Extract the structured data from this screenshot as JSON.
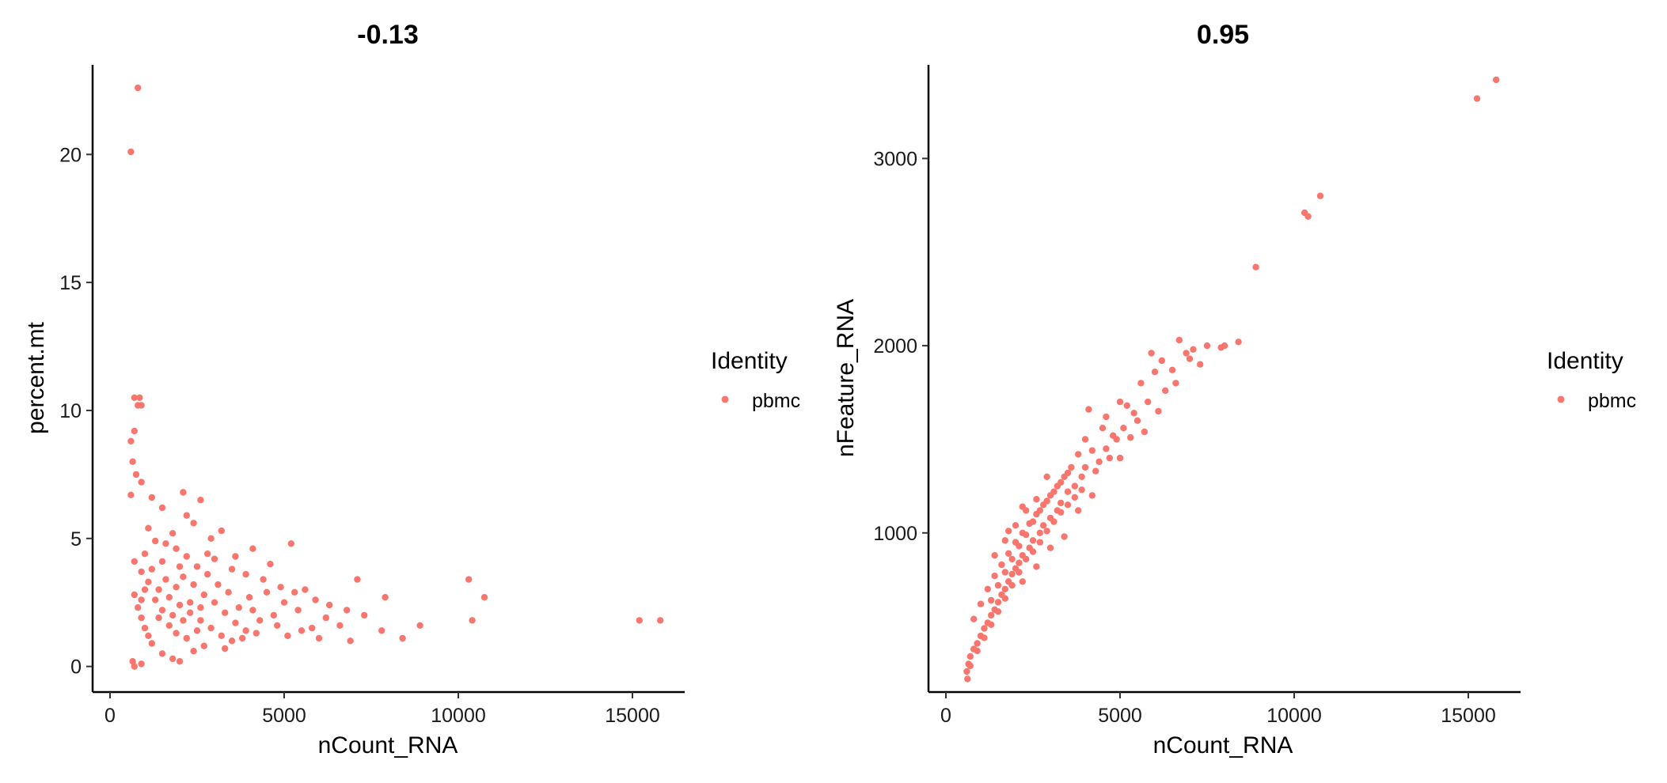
{
  "chart_data": [
    {
      "type": "scatter",
      "title": "-0.13",
      "xlabel": "nCount_RNA",
      "ylabel": "percent.mt",
      "xlim": [
        -500,
        16500
      ],
      "ylim": [
        -1,
        23.5
      ],
      "xticks": [
        0,
        5000,
        10000,
        15000
      ],
      "yticks": [
        0,
        5,
        10,
        15,
        20
      ],
      "xtick_labels": [
        "0",
        "5000",
        "10000",
        "15000"
      ],
      "ytick_labels": [
        "0",
        "5",
        "10",
        "15",
        "20"
      ],
      "grid": false,
      "legend": {
        "title": "Identity",
        "entries": [
          {
            "label": "pbmc",
            "color": "#F8766D"
          }
        ],
        "position": "right"
      },
      "series": [
        {
          "name": "pbmc",
          "color": "#F8766D",
          "points": [
            [
              800,
              22.6
            ],
            [
              600,
              20.1
            ],
            [
              700,
              10.5
            ],
            [
              850,
              10.5
            ],
            [
              800,
              10.2
            ],
            [
              900,
              10.2
            ],
            [
              700,
              9.2
            ],
            [
              600,
              8.8
            ],
            [
              650,
              8.0
            ],
            [
              750,
              7.5
            ],
            [
              900,
              7.2
            ],
            [
              600,
              6.7
            ],
            [
              1200,
              6.6
            ],
            [
              2100,
              6.8
            ],
            [
              2600,
              6.5
            ],
            [
              1500,
              6.2
            ],
            [
              2200,
              5.9
            ],
            [
              3200,
              5.3
            ],
            [
              4100,
              4.6
            ],
            [
              5200,
              4.8
            ],
            [
              3600,
              4.3
            ],
            [
              4600,
              4.0
            ],
            [
              2900,
              5.0
            ],
            [
              1100,
              5.4
            ],
            [
              1800,
              5.2
            ],
            [
              2400,
              5.6
            ],
            [
              3000,
              4.2
            ],
            [
              3900,
              3.6
            ],
            [
              4400,
              3.4
            ],
            [
              4900,
              3.1
            ],
            [
              5300,
              2.9
            ],
            [
              5600,
              3.0
            ],
            [
              5900,
              2.6
            ],
            [
              6300,
              2.4
            ],
            [
              6800,
              2.2
            ],
            [
              7100,
              3.4
            ],
            [
              7300,
              2.0
            ],
            [
              6600,
              1.6
            ],
            [
              6200,
              1.9
            ],
            [
              5800,
              1.5
            ],
            [
              5400,
              2.2
            ],
            [
              5000,
              2.5
            ],
            [
              4700,
              2.0
            ],
            [
              4300,
              1.8
            ],
            [
              4000,
              2.7
            ],
            [
              3700,
              2.3
            ],
            [
              3400,
              2.9
            ],
            [
              3100,
              3.2
            ],
            [
              2800,
              3.6
            ],
            [
              2500,
              3.9
            ],
            [
              2200,
              4.3
            ],
            [
              1900,
              4.6
            ],
            [
              1600,
              4.8
            ],
            [
              1300,
              4.9
            ],
            [
              1000,
              4.4
            ],
            [
              700,
              4.1
            ],
            [
              900,
              3.7
            ],
            [
              1100,
              3.3
            ],
            [
              1400,
              3.0
            ],
            [
              1700,
              2.7
            ],
            [
              2000,
              2.4
            ],
            [
              2300,
              2.1
            ],
            [
              2600,
              1.8
            ],
            [
              2900,
              1.5
            ],
            [
              3200,
              1.2
            ],
            [
              3500,
              1.0
            ],
            [
              700,
              2.8
            ],
            [
              800,
              2.3
            ],
            [
              900,
              1.9
            ],
            [
              1000,
              1.5
            ],
            [
              1100,
              1.2
            ],
            [
              1200,
              0.9
            ],
            [
              650,
              0.2
            ],
            [
              700,
              0.0
            ],
            [
              900,
              0.1
            ],
            [
              1500,
              0.5
            ],
            [
              1800,
              0.3
            ],
            [
              2000,
              0.2
            ],
            [
              2400,
              0.6
            ],
            [
              2700,
              0.8
            ],
            [
              3300,
              0.7
            ],
            [
              3800,
              1.1
            ],
            [
              4200,
              1.3
            ],
            [
              4800,
              1.6
            ],
            [
              5100,
              1.2
            ],
            [
              5500,
              1.4
            ],
            [
              6000,
              1.1
            ],
            [
              6900,
              1.0
            ],
            [
              7900,
              2.7
            ],
            [
              7800,
              1.4
            ],
            [
              8400,
              1.1
            ],
            [
              8900,
              1.6
            ],
            [
              10300,
              3.4
            ],
            [
              10400,
              1.8
            ],
            [
              10750,
              2.7
            ],
            [
              15200,
              1.8
            ],
            [
              15800,
              1.8
            ],
            [
              1500,
              2.2
            ],
            [
              1800,
              2.0
            ],
            [
              2100,
              1.8
            ],
            [
              2300,
              2.5
            ],
            [
              2600,
              2.3
            ],
            [
              1700,
              1.6
            ],
            [
              1900,
              1.3
            ],
            [
              2200,
              1.1
            ],
            [
              2500,
              1.4
            ],
            [
              1400,
              1.9
            ],
            [
              1300,
              2.6
            ],
            [
              1600,
              3.4
            ],
            [
              1900,
              3.1
            ],
            [
              2100,
              3.5
            ],
            [
              2400,
              3.2
            ],
            [
              2700,
              2.8
            ],
            [
              3000,
              2.5
            ],
            [
              3300,
              2.1
            ],
            [
              3600,
              1.7
            ],
            [
              3900,
              1.4
            ],
            [
              1200,
              3.8
            ],
            [
              1500,
              4.1
            ],
            [
              2000,
              3.9
            ],
            [
              2800,
              4.4
            ],
            [
              3500,
              3.8
            ],
            [
              4500,
              2.9
            ],
            [
              4100,
              2.2
            ],
            [
              900,
              2.6
            ],
            [
              1000,
              3.0
            ]
          ]
        }
      ]
    },
    {
      "type": "scatter",
      "title": "0.95",
      "xlabel": "nCount_RNA",
      "ylabel": "nFeature_RNA",
      "xlim": [
        -500,
        16500
      ],
      "ylim": [
        150,
        3500
      ],
      "xticks": [
        0,
        5000,
        10000,
        15000
      ],
      "yticks": [
        1000,
        2000,
        3000
      ],
      "xtick_labels": [
        "0",
        "5000",
        "10000",
        "15000"
      ],
      "ytick_labels": [
        "1000",
        "2000",
        "3000"
      ],
      "grid": false,
      "legend": {
        "title": "Identity",
        "entries": [
          {
            "label": "pbmc",
            "color": "#F8766D"
          }
        ],
        "position": "right"
      },
      "series": [
        {
          "name": "pbmc",
          "color": "#F8766D",
          "points": [
            [
              15800,
              3420
            ],
            [
              15250,
              3320
            ],
            [
              10750,
              2800
            ],
            [
              10300,
              2710
            ],
            [
              10400,
              2690
            ],
            [
              8900,
              2420
            ],
            [
              8400,
              2020
            ],
            [
              8000,
              2000
            ],
            [
              7900,
              1990
            ],
            [
              7100,
              1980
            ],
            [
              7000,
              1930
            ],
            [
              6900,
              1960
            ],
            [
              6700,
              2030
            ],
            [
              6500,
              1870
            ],
            [
              6200,
              1920
            ],
            [
              5900,
              1960
            ],
            [
              6000,
              1860
            ],
            [
              6300,
              1760
            ],
            [
              5600,
              1800
            ],
            [
              5500,
              1600
            ],
            [
              5800,
              1700
            ],
            [
              5200,
              1680
            ],
            [
              5100,
              1560
            ],
            [
              5300,
              1510
            ],
            [
              4900,
              1500
            ],
            [
              4600,
              1450
            ],
            [
              4400,
              1380
            ],
            [
              4200,
              1440
            ],
            [
              4100,
              1660
            ],
            [
              4000,
              1350
            ],
            [
              3900,
              1300
            ],
            [
              3700,
              1250
            ],
            [
              3500,
              1220
            ],
            [
              3300,
              1160
            ],
            [
              3200,
              1120
            ],
            [
              3000,
              1080
            ],
            [
              2800,
              1040
            ],
            [
              2700,
              1000
            ],
            [
              2500,
              960
            ],
            [
              2400,
              920
            ],
            [
              2200,
              880
            ],
            [
              2100,
              840
            ],
            [
              2000,
              810
            ],
            [
              1900,
              780
            ],
            [
              1800,
              740
            ],
            [
              1700,
              700
            ],
            [
              1600,
              670
            ],
            [
              1500,
              630
            ],
            [
              1400,
              590
            ],
            [
              1300,
              560
            ],
            [
              1200,
              520
            ],
            [
              1100,
              490
            ],
            [
              1000,
              450
            ],
            [
              900,
              410
            ],
            [
              800,
              380
            ],
            [
              700,
              340
            ],
            [
              650,
              300
            ],
            [
              600,
              260
            ],
            [
              620,
              220
            ],
            [
              700,
              290
            ],
            [
              900,
              370
            ],
            [
              1100,
              440
            ],
            [
              1300,
              510
            ],
            [
              1500,
              580
            ],
            [
              1700,
              650
            ],
            [
              1900,
              720
            ],
            [
              2100,
              790
            ],
            [
              2300,
              860
            ],
            [
              2500,
              900
            ],
            [
              2700,
              950
            ],
            [
              2900,
              1010
            ],
            [
              3100,
              1060
            ],
            [
              3300,
              1110
            ],
            [
              3500,
              1150
            ],
            [
              3700,
              1190
            ],
            [
              3900,
              1230
            ],
            [
              4300,
              1330
            ],
            [
              4700,
              1400
            ],
            [
              4800,
              1520
            ],
            [
              4500,
              1560
            ],
            [
              3800,
              1420
            ],
            [
              3600,
              1350
            ],
            [
              3400,
              1300
            ],
            [
              3200,
              1250
            ],
            [
              3000,
              1200
            ],
            [
              2800,
              1150
            ],
            [
              2600,
              1100
            ],
            [
              2400,
              1050
            ],
            [
              2200,
              1000
            ],
            [
              2000,
              950
            ],
            [
              1800,
              890
            ],
            [
              1600,
              830
            ],
            [
              1400,
              770
            ],
            [
              1200,
              700
            ],
            [
              1000,
              620
            ],
            [
              800,
              540
            ],
            [
              1300,
              640
            ],
            [
              1500,
              720
            ],
            [
              1700,
              790
            ],
            [
              1900,
              860
            ],
            [
              2100,
              930
            ],
            [
              2300,
              990
            ],
            [
              2500,
              1060
            ],
            [
              2700,
              1120
            ],
            [
              2900,
              1170
            ],
            [
              3100,
              1220
            ],
            [
              3300,
              1270
            ],
            [
              3500,
              1320
            ],
            [
              2600,
              1180
            ],
            [
              2300,
              1120
            ],
            [
              2000,
              1040
            ],
            [
              1700,
              960
            ],
            [
              1400,
              880
            ],
            [
              1800,
              1010
            ],
            [
              2200,
              1140
            ],
            [
              2900,
              1300
            ],
            [
              4000,
              1500
            ],
            [
              4600,
              1620
            ],
            [
              5000,
              1700
            ],
            [
              5400,
              1640
            ],
            [
              3000,
              920
            ],
            [
              3400,
              980
            ],
            [
              2600,
              820
            ],
            [
              2200,
              740
            ],
            [
              3800,
              1120
            ],
            [
              4200,
              1200
            ],
            [
              5000,
              1400
            ],
            [
              5700,
              1540
            ],
            [
              6100,
              1650
            ],
            [
              6600,
              1800
            ],
            [
              7300,
              1900
            ],
            [
              7500,
              2000
            ]
          ]
        }
      ]
    }
  ]
}
